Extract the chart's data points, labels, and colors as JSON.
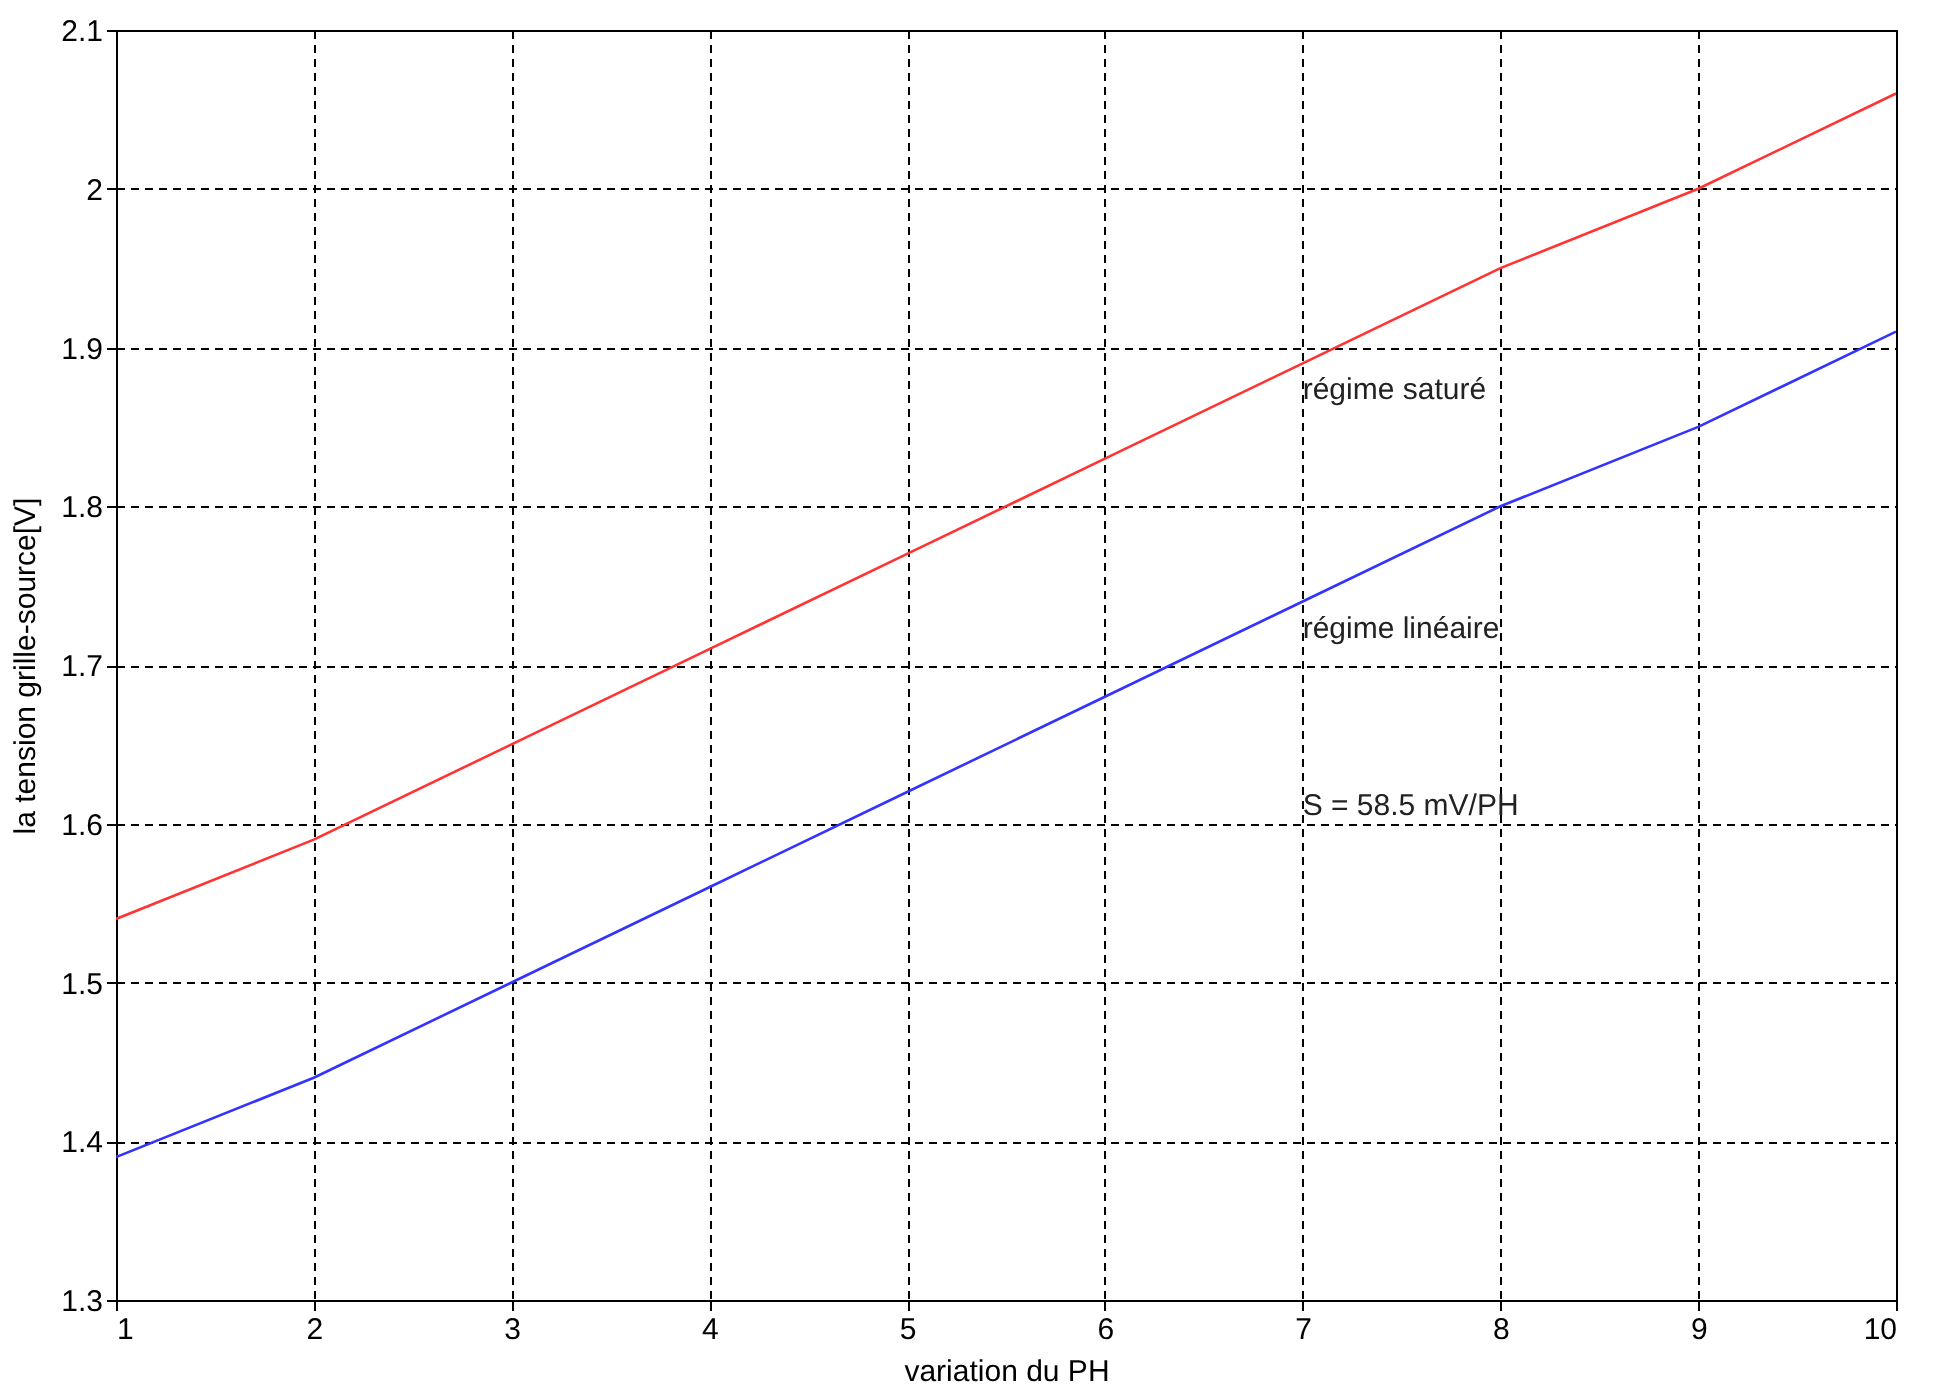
{
  "chart_data": {
    "type": "line",
    "xlabel": "variation du PH",
    "ylabel": "la tension grille-source[V]",
    "x": [
      1,
      2,
      3,
      4,
      5,
      6,
      7,
      8,
      9,
      10
    ],
    "series": [
      {
        "name": "régime saturé",
        "color": "#ff3333",
        "values": [
          1.54,
          1.59,
          1.65,
          1.71,
          1.77,
          1.83,
          1.89,
          1.95,
          2.0,
          2.06
        ]
      },
      {
        "name": "régime linéaire",
        "color": "#3333ff",
        "values": [
          1.39,
          1.44,
          1.5,
          1.56,
          1.62,
          1.68,
          1.74,
          1.8,
          1.85,
          1.91
        ]
      }
    ],
    "annotations": [
      "S = 58.5 mV/PH"
    ],
    "xlim": [
      1,
      10
    ],
    "xticks": [
      1,
      2,
      3,
      4,
      5,
      6,
      7,
      8,
      9,
      10
    ],
    "ylim": [
      1.3,
      2.1
    ],
    "yticks": [
      1.3,
      1.4,
      1.5,
      1.6,
      1.7,
      1.8,
      1.9,
      2,
      2.1
    ],
    "grid": true,
    "legend": false
  }
}
